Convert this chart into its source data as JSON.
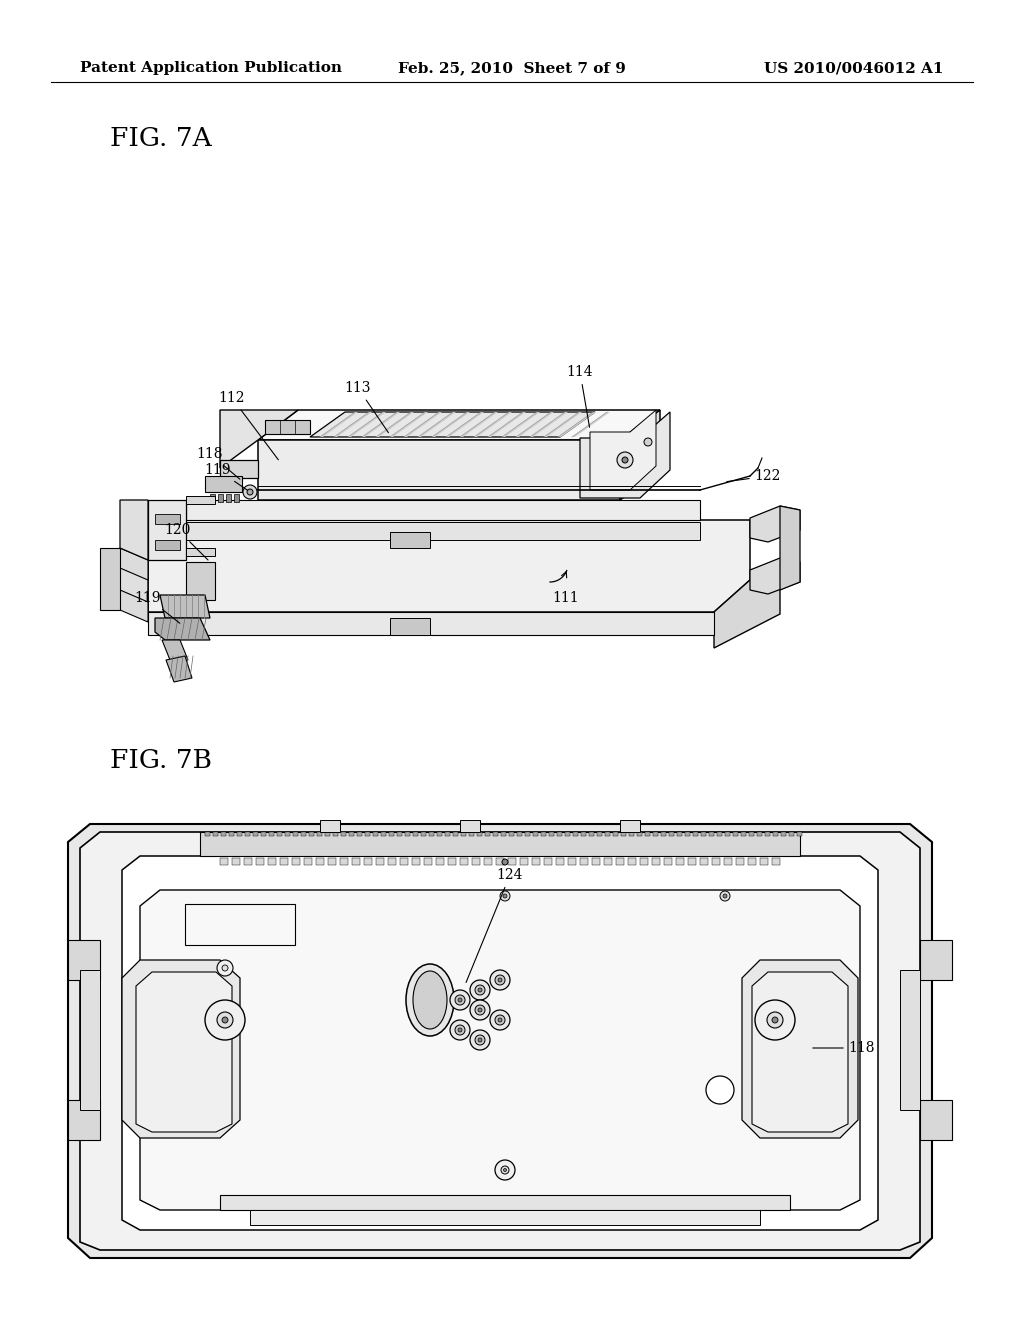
{
  "background_color": "#ffffff",
  "header_left": "Patent Application Publication",
  "header_center": "Feb. 25, 2010  Sheet 7 of 9",
  "header_right": "US 2010/0046012 A1",
  "header_fontsize": 11,
  "fig7a_label": "FIG. 7A",
  "fig7b_label": "FIG. 7B",
  "text_color": "#000000",
  "line_color": "#000000",
  "ann_fontsize": 10
}
